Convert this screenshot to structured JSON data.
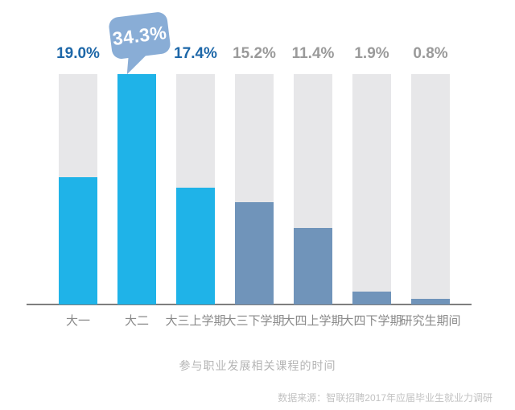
{
  "chart_data": {
    "type": "bar",
    "title": "参与职业发展相关课程的时间",
    "source_note": "数据来源：智联招聘2017年应届毕业生就业力调研",
    "categories": [
      "大一",
      "大二",
      "大三上学期",
      "大三下学期",
      "大四上学期",
      "大四下学期",
      "研究生期间"
    ],
    "values": [
      19.0,
      34.3,
      17.4,
      15.2,
      11.4,
      1.9,
      0.8
    ],
    "value_labels": [
      "19.0%",
      "34.3%",
      "17.4%",
      "15.2%",
      "11.4%",
      "1.9%",
      "0.8%"
    ],
    "ylim": [
      0,
      34.3
    ],
    "grid": false,
    "legend_position": "none",
    "highlighted_bar_count": 3,
    "callout": {
      "index": 1,
      "label": "34.3%"
    },
    "colors": {
      "highlight_bar": "#1fb3e8",
      "muted_bar": "#7094ba",
      "track": "#e7e7e9",
      "highlight_label": "#1d67a8",
      "muted_label": "#9a9a9a",
      "callout_bubble": "#89add6",
      "callout_text": "#ffffff",
      "axis_line": "#7f7f7f",
      "tick_label": "#8a8a8a",
      "title_text": "#b4b4b4",
      "source_text": "#c2c2c2"
    }
  }
}
